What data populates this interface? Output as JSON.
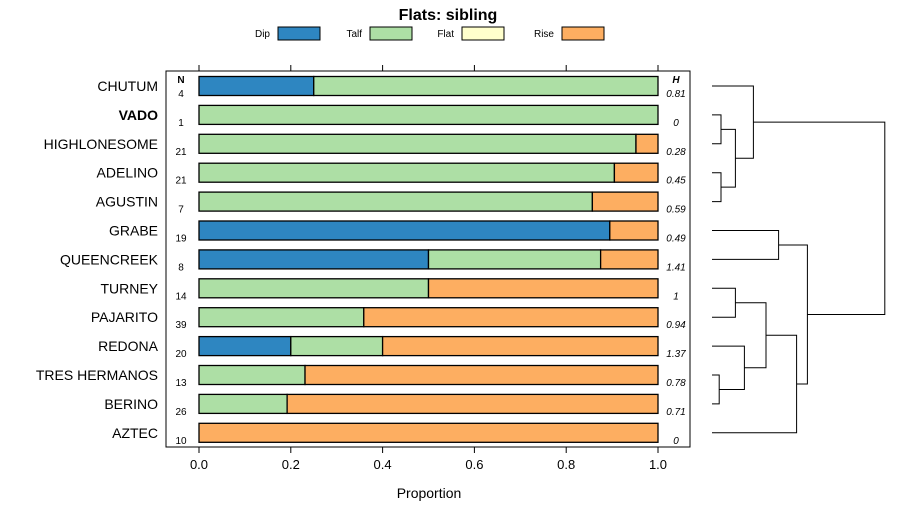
{
  "chart_data": {
    "type": "bar",
    "orientation": "horizontal-stacked",
    "title": "Flats: sibling",
    "xlabel": "Proportion",
    "ylabel": "",
    "xlim": [
      0,
      1
    ],
    "xticks": [
      "0.0",
      "0.2",
      "0.4",
      "0.6",
      "0.8",
      "1.0"
    ],
    "n_header": "N",
    "h_header": "H",
    "legend": [
      {
        "name": "Dip",
        "color": "#2e86c1"
      },
      {
        "name": "Talf",
        "color": "#addfa5"
      },
      {
        "name": "Flat",
        "color": "#ffffcc"
      },
      {
        "name": "Rise",
        "color": "#fdae61"
      }
    ],
    "categories": [
      "CHUTUM",
      "VADO",
      "HIGHLONESOME",
      "ADELINO",
      "AGUSTIN",
      "GRABE",
      "QUEENCREEK",
      "TURNEY",
      "PAJARITO",
      "REDONA",
      "TRES HERMANOS",
      "BERINO",
      "AZTEC"
    ],
    "bold_category": "VADO",
    "n": [
      "4",
      "1",
      "21",
      "21",
      "7",
      "19",
      "8",
      "14",
      "39",
      "20",
      "13",
      "26",
      "10"
    ],
    "h": [
      "0.81",
      "0",
      "0.28",
      "0.45",
      "0.59",
      "0.49",
      "1.41",
      "1",
      "0.94",
      "1.37",
      "0.78",
      "0.71",
      "0"
    ],
    "series": [
      {
        "name": "Dip",
        "values": [
          0.25,
          0,
          0,
          0,
          0,
          0.895,
          0.5,
          0,
          0,
          0.2,
          0,
          0,
          0
        ]
      },
      {
        "name": "Talf",
        "values": [
          0.75,
          1,
          0.952,
          0.905,
          0.857,
          0,
          0.375,
          0.5,
          0.359,
          0.2,
          0.231,
          0.192,
          0
        ]
      },
      {
        "name": "Flat",
        "values": [
          0,
          0,
          0,
          0,
          0,
          0,
          0,
          0,
          0,
          0,
          0,
          0,
          0
        ]
      },
      {
        "name": "Rise",
        "values": [
          0,
          0,
          0.048,
          0.095,
          0.143,
          0.105,
          0.125,
          0.5,
          0.641,
          0.6,
          0.769,
          0.808,
          1
        ]
      }
    ],
    "dendrogram": {
      "leaves": [
        "CHUTUM",
        "VADO",
        "HIGHLONESOME",
        "ADELINO",
        "AGUSTIN",
        "GRABE",
        "QUEENCREEK",
        "TURNEY",
        "PAJARITO",
        "REDONA",
        "TRES HERMANOS",
        "BERINO",
        "AZTEC"
      ],
      "merges": [
        {
          "a": [
            1
          ],
          "b": [
            2
          ],
          "h": 0.05
        },
        {
          "a": [
            3
          ],
          "b": [
            4
          ],
          "h": 0.05
        },
        {
          "a": [
            1,
            2
          ],
          "b": [
            3,
            4
          ],
          "h": 0.13
        },
        {
          "a": [
            0
          ],
          "b": [
            1,
            2,
            3,
            4
          ],
          "h": 0.23
        },
        {
          "a": [
            5
          ],
          "b": [
            6
          ],
          "h": 0.37
        },
        {
          "a": [
            7
          ],
          "b": [
            8
          ],
          "h": 0.13
        },
        {
          "a": [
            10
          ],
          "b": [
            11
          ],
          "h": 0.04
        },
        {
          "a": [
            9
          ],
          "b": [
            10,
            11
          ],
          "h": 0.18
        },
        {
          "a": [
            7,
            8
          ],
          "b": [
            9,
            10,
            11
          ],
          "h": 0.3
        },
        {
          "a": [
            7,
            8,
            9,
            10,
            11
          ],
          "b": [
            12
          ],
          "h": 0.47
        },
        {
          "a": [
            7,
            8,
            9,
            10,
            11,
            12
          ],
          "b": [
            5,
            6
          ],
          "h": 0.53
        },
        {
          "a": [
            0,
            1,
            2,
            3,
            4
          ],
          "b": [
            5,
            6,
            7,
            8,
            9,
            10,
            11,
            12
          ],
          "h": 0.96
        }
      ]
    }
  }
}
